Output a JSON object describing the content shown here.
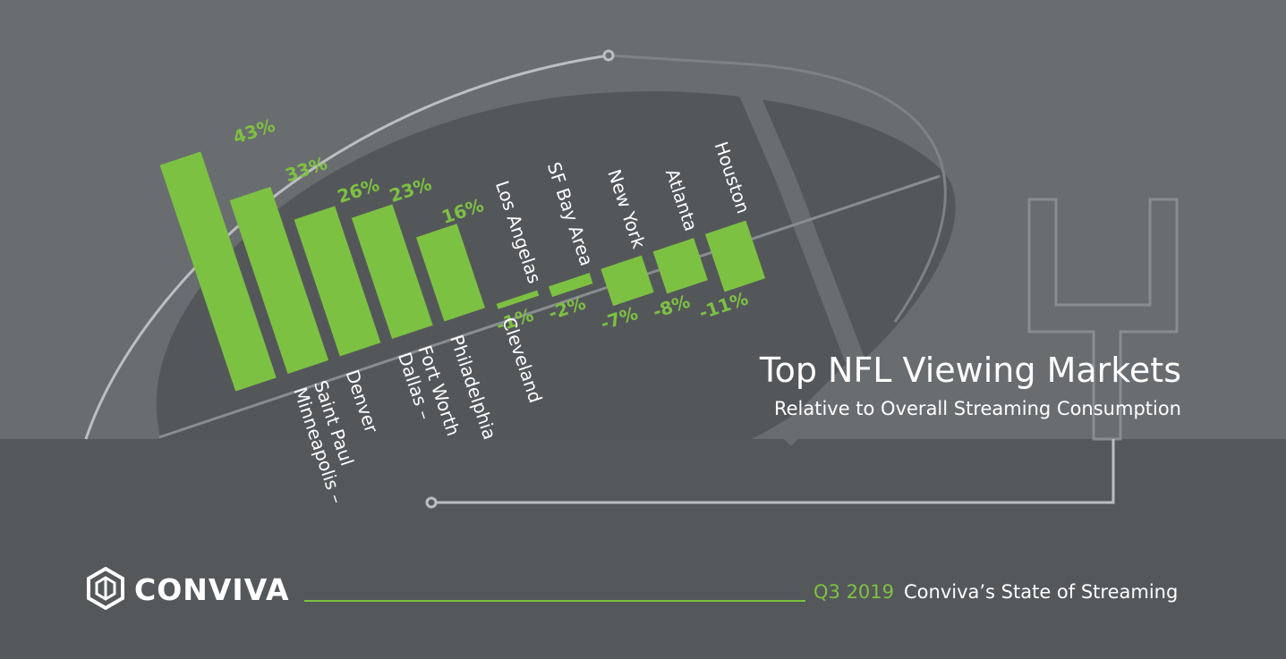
{
  "title": "Top NFL Viewing Markets",
  "subtitle": "Relative to Overall Streaming Consumption",
  "footer": {
    "brand": "CONVIVA",
    "period": "Q3 2019",
    "report": "Conviva’s State of Streaming"
  },
  "colors": {
    "bar": "#7dc142",
    "background_top": "#6a6d70",
    "background_bottom": "#55585b",
    "football": "#54575a",
    "line": "#bcbec0",
    "text": "#ffffff"
  },
  "icons": {
    "logo": "conviva-hexagon-logo-icon",
    "goalpost": "goalpost-outline-icon"
  },
  "chart_data": {
    "type": "bar",
    "categories": [
      "Minneapolis – Saint Paul",
      "Denver",
      "Dallas – Fort Worth",
      "Philadelphia",
      "Cleveland",
      "Los Angelas",
      "SF Bay Area",
      "New York",
      "Atlanta",
      "Houston"
    ],
    "values": [
      43,
      33,
      26,
      23,
      16,
      -1,
      -2,
      -7,
      -8,
      -11
    ],
    "value_labels": [
      "43%",
      "33%",
      "26%",
      "23%",
      "16%",
      "-1%",
      "-2%",
      "-7%",
      "-8%",
      "-11%"
    ],
    "title": "Top NFL Viewing Markets",
    "subtitle": "Relative to Overall Streaming Consumption",
    "unit": "%",
    "grid": false,
    "legend": "none"
  }
}
